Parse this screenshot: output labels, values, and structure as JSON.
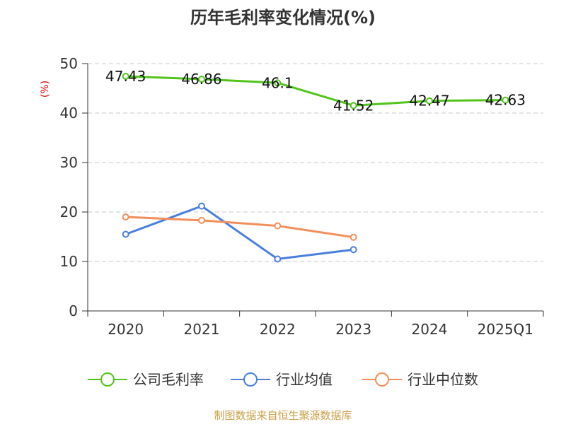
{
  "chart_data": {
    "type": "line",
    "title": "历年毛利率变化情况(%)",
    "ylabel": "(%)",
    "xlabel": "",
    "categories": [
      "2020",
      "2021",
      "2022",
      "2023",
      "2024",
      "2025Q1"
    ],
    "ylim": [
      0,
      50
    ],
    "yticks": [
      0,
      10,
      20,
      30,
      40,
      50
    ],
    "grid": true,
    "legend_position": "bottom",
    "series": [
      {
        "name": "公司毛利率",
        "color": "#52c41a",
        "values": [
          47.43,
          46.86,
          46.1,
          41.52,
          42.47,
          42.63
        ],
        "labels": [
          "47.43",
          "46.86",
          "46.1",
          "41.52",
          "42.47",
          "42.63"
        ]
      },
      {
        "name": "行业均值",
        "color": "#4a7fde",
        "values": [
          15.5,
          21.2,
          10.5,
          12.4,
          null,
          null
        ]
      },
      {
        "name": "行业中位数",
        "color": "#f28e5b",
        "values": [
          19.0,
          18.3,
          17.2,
          14.9,
          null,
          null
        ]
      }
    ],
    "source": "制图数据来自恒生聚源数据库"
  }
}
